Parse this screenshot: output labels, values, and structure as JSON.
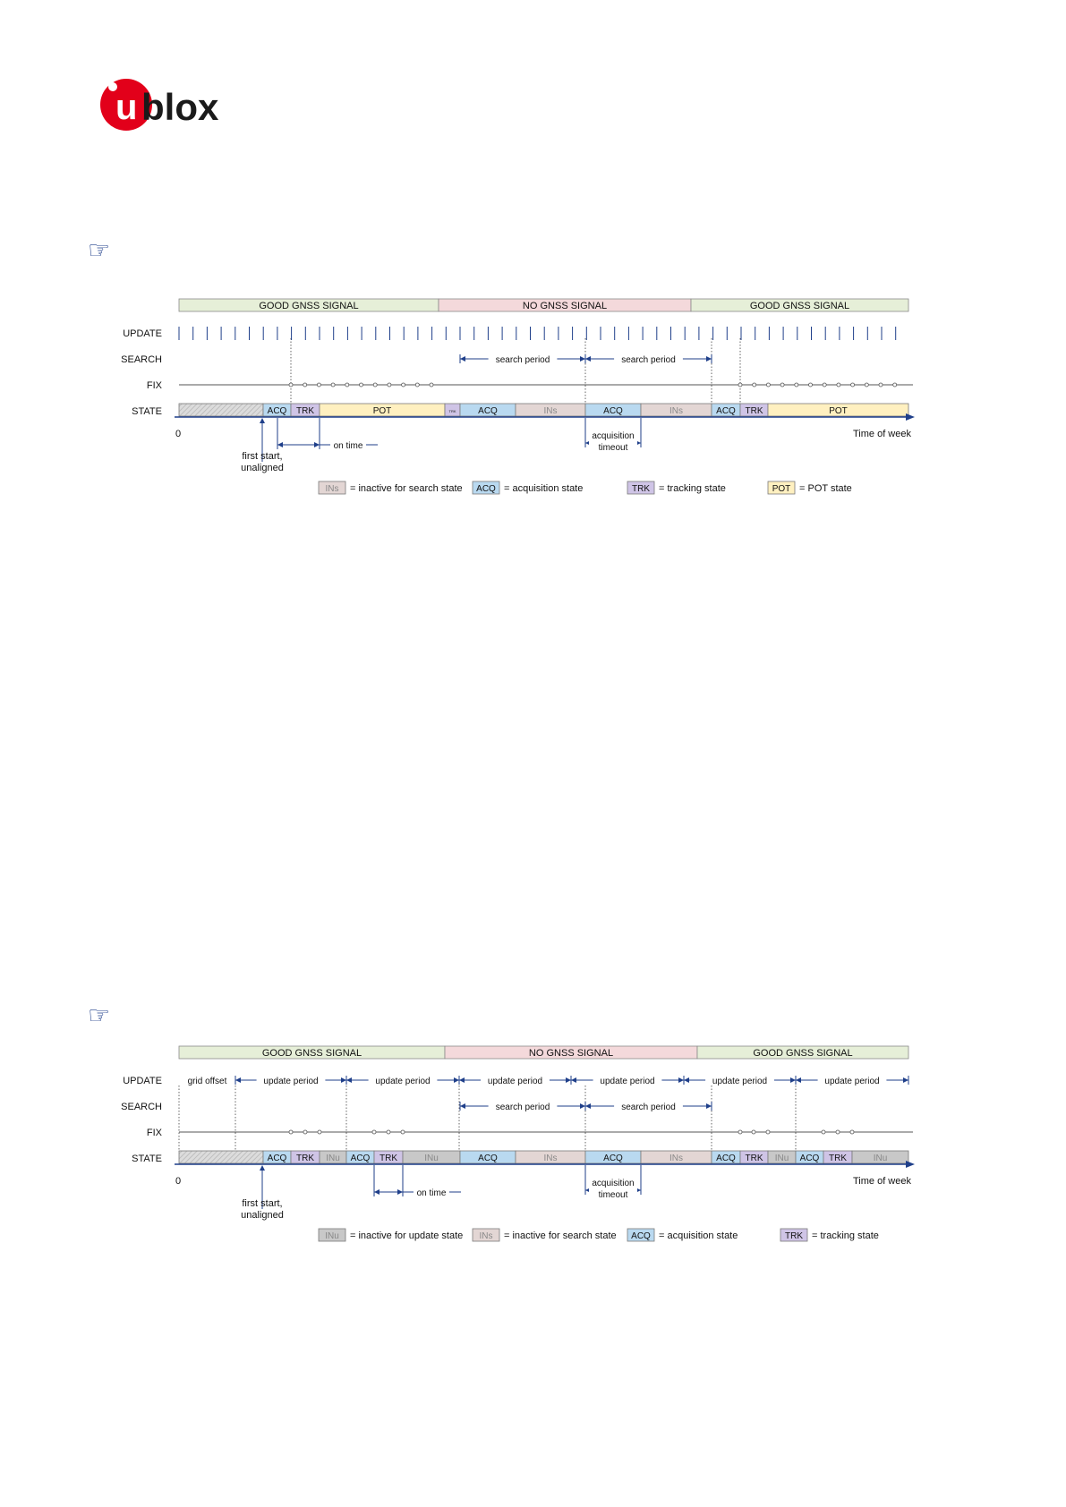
{
  "brand": {
    "logo_text": "ublox",
    "colors": {
      "red": "#e2001a",
      "dark": "#1a1a1a"
    }
  },
  "notes": [
    {
      "icon": "pointing-hand-icon"
    },
    {
      "icon": "pointing-hand-icon"
    }
  ],
  "diagram1": {
    "signals": [
      {
        "label": "GOOD GNSS SIGNAL",
        "kind": "good"
      },
      {
        "label": "NO GNSS SIGNAL",
        "kind": "none"
      },
      {
        "label": "GOOD GNSS SIGNAL",
        "kind": "good"
      }
    ],
    "rows": [
      "UPDATE",
      "SEARCH",
      "FIX",
      "STATE"
    ],
    "search_labels": [
      "search period",
      "search period"
    ],
    "states": [
      {
        "label": "",
        "type": "INIT"
      },
      {
        "label": "ACQ",
        "type": "ACQ"
      },
      {
        "label": "TRK",
        "type": "TRK"
      },
      {
        "label": "POT",
        "type": "POT"
      },
      {
        "label": "TRK",
        "type": "TRK"
      },
      {
        "label": "ACQ",
        "type": "ACQ"
      },
      {
        "label": "INs",
        "type": "INS"
      },
      {
        "label": "ACQ",
        "type": "ACQ"
      },
      {
        "label": "INs",
        "type": "INS"
      },
      {
        "label": "ACQ",
        "type": "ACQ"
      },
      {
        "label": "TRK",
        "type": "TRK"
      },
      {
        "label": "POT",
        "type": "POT"
      }
    ],
    "axis": {
      "origin": "0",
      "end": "Time of week"
    },
    "annotations": {
      "first_start": [
        "first start,",
        "unaligned"
      ],
      "on_time": "on time",
      "acq_timeout": [
        "acquisition",
        "timeout"
      ]
    },
    "legend": [
      {
        "chip": "INs",
        "type": "INS",
        "text": "= inactive for search state"
      },
      {
        "chip": "ACQ",
        "type": "ACQ",
        "text": "= acquisition state"
      },
      {
        "chip": "TRK",
        "type": "TRK",
        "text": "= tracking state"
      },
      {
        "chip": "POT",
        "type": "POT",
        "text": "= POT state"
      }
    ]
  },
  "diagram2": {
    "signals": [
      {
        "label": "GOOD GNSS SIGNAL",
        "kind": "good"
      },
      {
        "label": "NO GNSS SIGNAL",
        "kind": "none"
      },
      {
        "label": "GOOD GNSS SIGNAL",
        "kind": "good"
      }
    ],
    "rows": [
      "UPDATE",
      "SEARCH",
      "FIX",
      "STATE"
    ],
    "update_labels": [
      "grid offset",
      "update period",
      "update period",
      "update period",
      "update period",
      "update period",
      "update period"
    ],
    "search_labels": [
      "search period",
      "search period"
    ],
    "states": [
      {
        "label": "",
        "type": "INIT"
      },
      {
        "label": "ACQ",
        "type": "ACQ"
      },
      {
        "label": "TRK",
        "type": "TRK"
      },
      {
        "label": "INu",
        "type": "INU"
      },
      {
        "label": "ACQ",
        "type": "ACQ"
      },
      {
        "label": "TRK",
        "type": "TRK"
      },
      {
        "label": "INu",
        "type": "INU"
      },
      {
        "label": "ACQ",
        "type": "ACQ"
      },
      {
        "label": "INs",
        "type": "INS"
      },
      {
        "label": "ACQ",
        "type": "ACQ"
      },
      {
        "label": "INs",
        "type": "INS"
      },
      {
        "label": "ACQ",
        "type": "ACQ"
      },
      {
        "label": "TRK",
        "type": "TRK"
      },
      {
        "label": "INu",
        "type": "INU"
      },
      {
        "label": "ACQ",
        "type": "ACQ"
      },
      {
        "label": "TRK",
        "type": "TRK"
      },
      {
        "label": "INu",
        "type": "INU"
      }
    ],
    "axis": {
      "origin": "0",
      "end": "Time of week"
    },
    "annotations": {
      "first_start": [
        "first start,",
        "unaligned"
      ],
      "on_time": "on time",
      "acq_timeout": [
        "acquisition",
        "timeout"
      ]
    },
    "legend": [
      {
        "chip": "INu",
        "type": "INU",
        "text": "= inactive for update state"
      },
      {
        "chip": "INs",
        "type": "INS",
        "text": "= inactive for search state"
      },
      {
        "chip": "ACQ",
        "type": "ACQ",
        "text": "= acquisition state"
      },
      {
        "chip": "TRK",
        "type": "TRK",
        "text": "= tracking state"
      }
    ]
  },
  "colors": {
    "good": "#e6efd8",
    "none": "#f4d9db",
    "ACQ": "#b9d9f0",
    "TRK": "#cfc4e6",
    "POT": "#fff0c0",
    "INS": "#e3d6d4",
    "INU": "#c8c8c8",
    "INIT": "#d8d8d8",
    "line": "#1f3f8a",
    "text": "#111111",
    "muted": "#8a8a8a"
  }
}
